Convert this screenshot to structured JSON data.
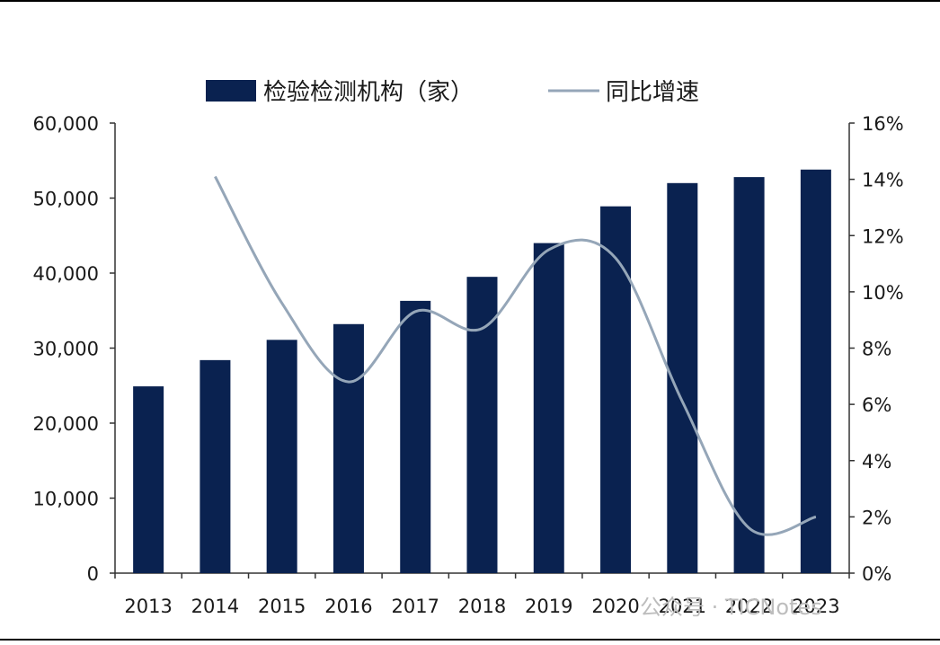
{
  "watermark": {
    "text": "公众号 · TICNotes"
  },
  "chart_data": {
    "type": "bar",
    "categories": [
      "2013",
      "2014",
      "2015",
      "2016",
      "2017",
      "2018",
      "2019",
      "2020",
      "2021",
      "2022",
      "2023"
    ],
    "series": [
      {
        "name": "检验检测机构（家）",
        "type": "bar",
        "axis": "left",
        "color": "#0a2250",
        "values": [
          24900,
          28400,
          31100,
          33200,
          36300,
          39500,
          44000,
          48900,
          52000,
          52800,
          53800
        ]
      },
      {
        "name": "同比增速",
        "type": "line",
        "axis": "right",
        "color": "#95a6b8",
        "values": [
          null,
          14.1,
          9.6,
          6.8,
          9.3,
          8.7,
          11.5,
          11.2,
          6.1,
          1.6,
          2.0
        ]
      }
    ],
    "left_axis": {
      "ylim": [
        0,
        60000
      ],
      "ticks": [
        0,
        10000,
        20000,
        30000,
        40000,
        50000,
        60000
      ],
      "tick_labels": [
        "0",
        "10,000",
        "20,000",
        "30,000",
        "40,000",
        "50,000",
        "60,000"
      ]
    },
    "right_axis": {
      "ylim": [
        0,
        16
      ],
      "ticks": [
        0,
        2,
        4,
        6,
        8,
        10,
        12,
        14,
        16
      ],
      "tick_labels": [
        "0%",
        "2%",
        "4%",
        "6%",
        "8%",
        "10%",
        "12%",
        "14%",
        "16%"
      ]
    },
    "grid": false,
    "legend_position": "top"
  }
}
